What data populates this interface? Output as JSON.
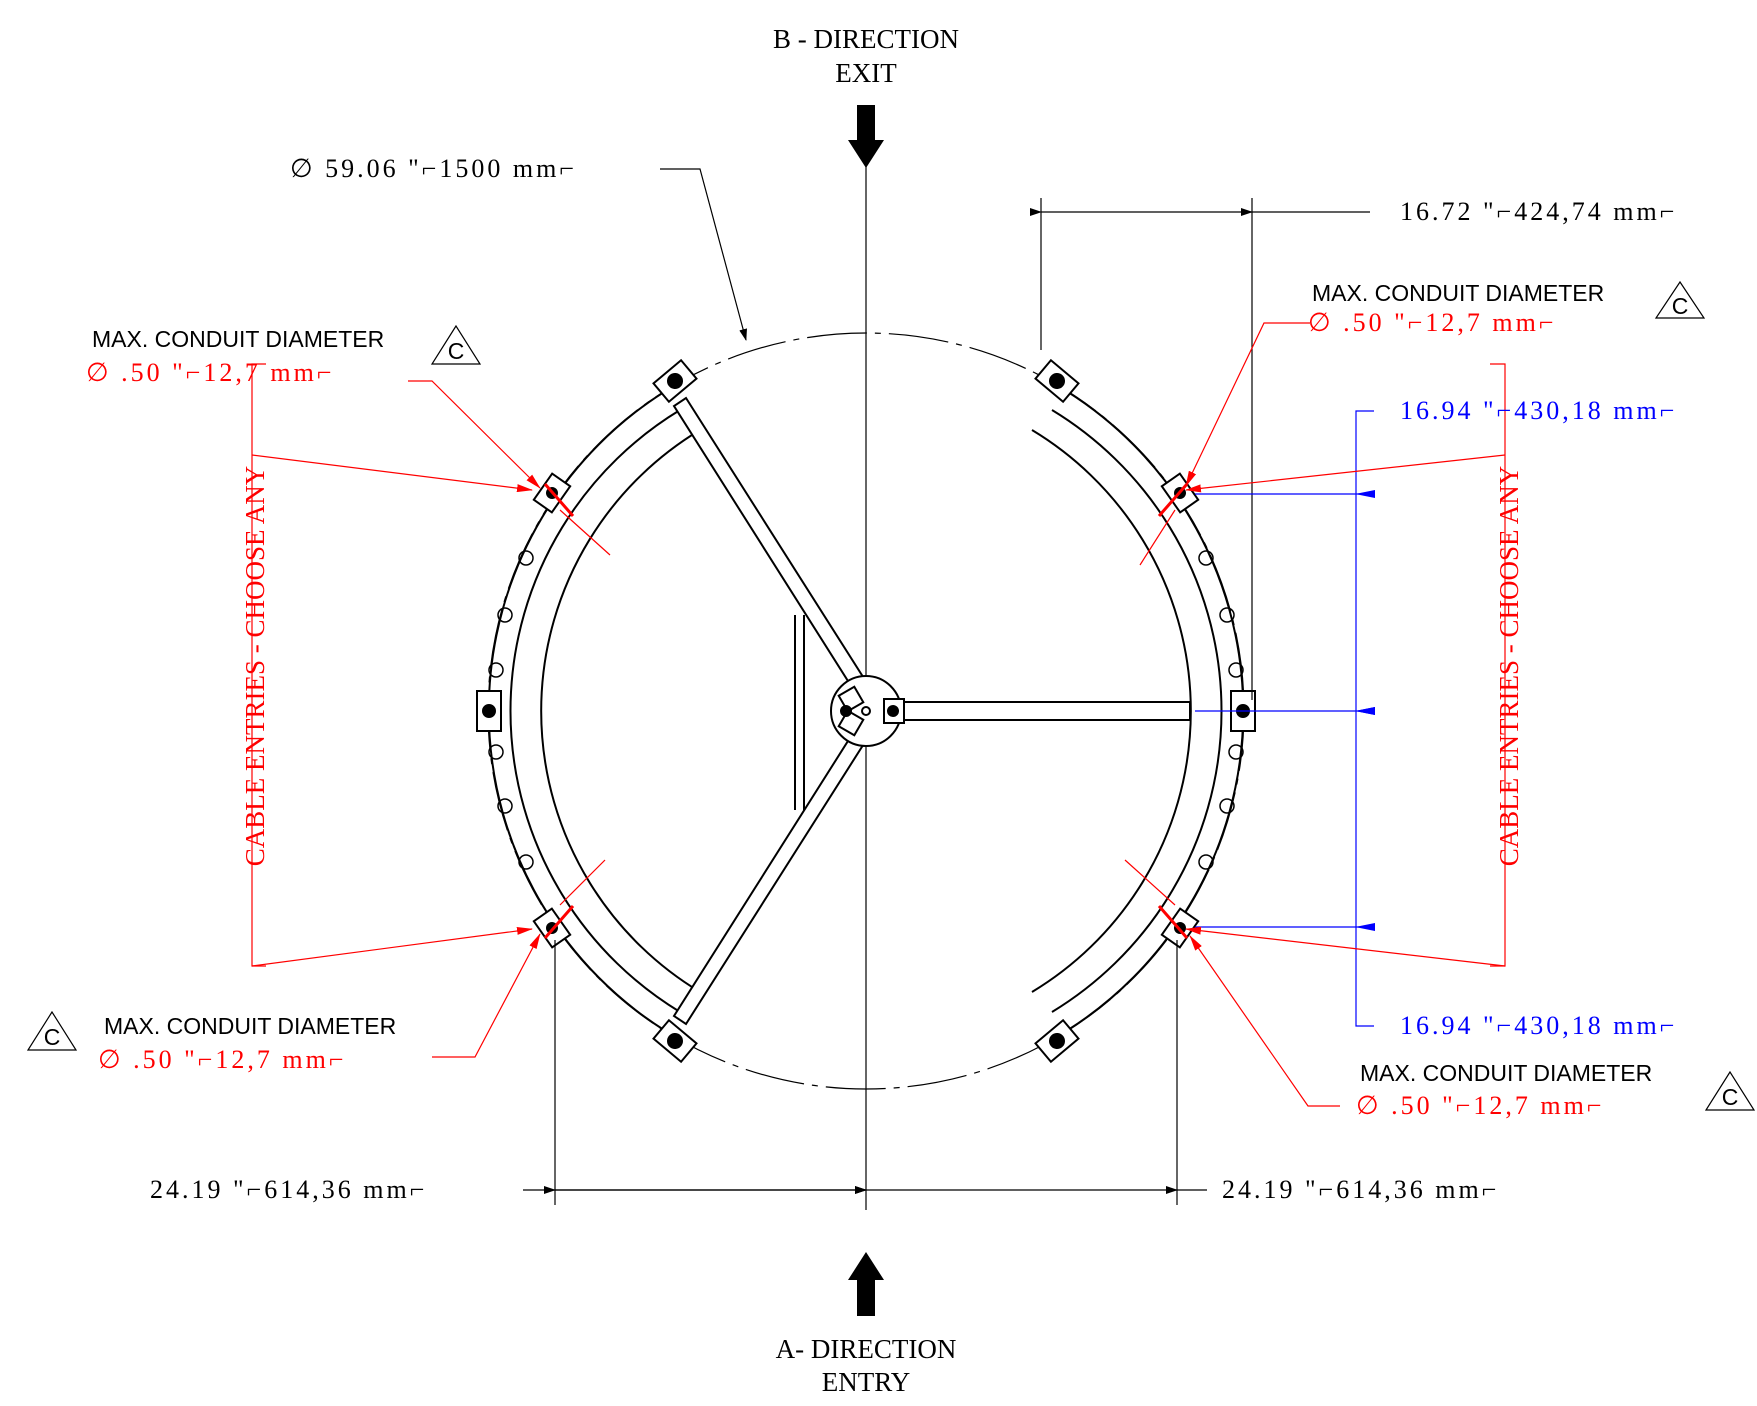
{
  "directions": {
    "exit": {
      "line1": "B - DIRECTION",
      "line2": "EXIT"
    },
    "entry": {
      "line1": "A- DIRECTION",
      "line2": "ENTRY"
    }
  },
  "dimensions": {
    "overall_diameter": "∅ 59.06 \"⌐1500 mm⌐",
    "top_right_width": "16.72 \"⌐424,74 mm⌐",
    "right_upper_offset": "16.94 \"⌐430,18 mm⌐",
    "right_lower_offset": "16.94 \"⌐430,18 mm⌐",
    "bottom_left_half": "24.19 \"⌐614,36 mm⌐",
    "bottom_right_half": "24.19 \"⌐614,36 mm⌐"
  },
  "conduits": {
    "label": "MAX. CONDUIT DIAMETER",
    "revision": "C",
    "value": "∅ .50 \"⌐12,7 mm⌐"
  },
  "cable_entries": {
    "left": "CABLE ENTRIES - CHOOSE ANY",
    "right": "CABLE ENTRIES - CHOOSE ANY"
  },
  "colors": {
    "line": "#000000",
    "annotation": "#ff0000",
    "dimension_blue": "#0000ff"
  }
}
